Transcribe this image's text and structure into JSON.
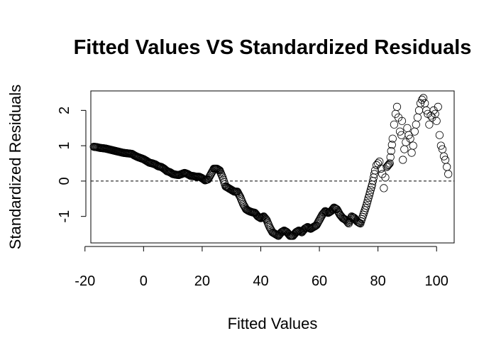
{
  "chart_data": {
    "type": "scatter",
    "title": "Fitted Values VS Standardized Residuals",
    "xlabel": "Fitted Values",
    "ylabel": "Standardized Residuals",
    "xlim": [
      -18,
      106
    ],
    "ylim": [
      -1.75,
      2.55
    ],
    "x_ticks": [
      -20,
      0,
      20,
      40,
      60,
      80,
      100
    ],
    "x_tick_labels": [
      "-20",
      "0",
      "20",
      "40",
      "60",
      "80",
      "100"
    ],
    "y_ticks": [
      -1,
      0,
      1,
      2
    ],
    "y_tick_labels": [
      "-1",
      "0",
      "1",
      "2"
    ],
    "reference_line": {
      "y": 0,
      "style": "dashed"
    },
    "grid": false,
    "marker": "open-circle",
    "points": [
      [
        -17,
        0.97
      ],
      [
        -16,
        0.96
      ],
      [
        -15,
        0.94
      ],
      [
        -14,
        0.93
      ],
      [
        -13,
        0.92
      ],
      [
        -12,
        0.9
      ],
      [
        -11,
        0.88
      ],
      [
        -10,
        0.86
      ],
      [
        -9,
        0.84
      ],
      [
        -8,
        0.82
      ],
      [
        -7,
        0.8
      ],
      [
        -6,
        0.79
      ],
      [
        -5,
        0.78
      ],
      [
        -4,
        0.77
      ],
      [
        -3,
        0.72
      ],
      [
        -2,
        0.68
      ],
      [
        -1,
        0.65
      ],
      [
        0,
        0.62
      ],
      [
        1,
        0.57
      ],
      [
        2,
        0.52
      ],
      [
        3,
        0.5
      ],
      [
        4,
        0.47
      ],
      [
        5,
        0.42
      ],
      [
        6,
        0.4
      ],
      [
        7,
        0.35
      ],
      [
        8,
        0.28
      ],
      [
        9,
        0.25
      ],
      [
        10,
        0.2
      ],
      [
        11,
        0.18
      ],
      [
        12,
        0.17
      ],
      [
        13,
        0.2
      ],
      [
        14,
        0.23
      ],
      [
        15,
        0.2
      ],
      [
        16,
        0.15
      ],
      [
        17,
        0.14
      ],
      [
        18,
        0.12
      ],
      [
        19,
        0.12
      ],
      [
        20,
        0.08
      ],
      [
        21,
        0.02
      ],
      [
        22,
        0.05
      ],
      [
        23,
        0.2
      ],
      [
        24,
        0.35
      ],
      [
        25,
        0.35
      ],
      [
        26,
        0.3
      ],
      [
        27,
        0.1
      ],
      [
        28,
        -0.15
      ],
      [
        29,
        -0.2
      ],
      [
        30,
        -0.25
      ],
      [
        31,
        -0.3
      ],
      [
        32,
        -0.3
      ],
      [
        33,
        -0.45
      ],
      [
        34,
        -0.65
      ],
      [
        35,
        -0.8
      ],
      [
        36,
        -0.85
      ],
      [
        37,
        -0.88
      ],
      [
        38,
        -0.9
      ],
      [
        39,
        -1.0
      ],
      [
        40,
        -1.05
      ],
      [
        41,
        -1.0
      ],
      [
        42,
        -1.1
      ],
      [
        43,
        -1.3
      ],
      [
        44,
        -1.45
      ],
      [
        45,
        -1.5
      ],
      [
        46,
        -1.55
      ],
      [
        47,
        -1.45
      ],
      [
        48,
        -1.4
      ],
      [
        49,
        -1.45
      ],
      [
        50,
        -1.55
      ],
      [
        51,
        -1.55
      ],
      [
        52,
        -1.45
      ],
      [
        53,
        -1.4
      ],
      [
        54,
        -1.45
      ],
      [
        55,
        -1.35
      ],
      [
        56,
        -1.3
      ],
      [
        57,
        -1.35
      ],
      [
        58,
        -1.3
      ],
      [
        59,
        -1.25
      ],
      [
        60,
        -1.1
      ],
      [
        61,
        -0.95
      ],
      [
        62,
        -0.85
      ],
      [
        63,
        -0.9
      ],
      [
        64,
        -0.85
      ],
      [
        65,
        -0.75
      ],
      [
        66,
        -0.8
      ],
      [
        67,
        -0.95
      ],
      [
        68,
        -1.05
      ],
      [
        69,
        -1.1
      ],
      [
        70,
        -1.2
      ],
      [
        71,
        -1.0
      ],
      [
        72,
        -1.05
      ],
      [
        73,
        -1.15
      ],
      [
        74,
        -1.2
      ],
      [
        75,
        -0.95
      ],
      [
        76,
        -0.7
      ],
      [
        77,
        -0.4
      ],
      [
        78,
        -0.1
      ],
      [
        79,
        0.3
      ],
      [
        80,
        0.5
      ],
      [
        81,
        0.35
      ],
      [
        82,
        -0.2
      ],
      [
        83,
        0.4
      ],
      [
        84,
        0.5
      ],
      [
        85,
        1.2
      ],
      [
        86,
        1.9
      ],
      [
        87,
        1.8
      ],
      [
        88,
        1.3
      ],
      [
        89,
        0.9
      ],
      [
        90,
        1.5
      ],
      [
        91,
        1.2
      ],
      [
        92,
        1.0
      ],
      [
        93,
        1.6
      ],
      [
        94,
        2.0
      ],
      [
        95,
        2.3
      ],
      [
        96,
        2.2
      ],
      [
        97,
        1.9
      ],
      [
        98,
        1.85
      ],
      [
        99,
        2.0
      ],
      [
        100,
        1.7
      ],
      [
        101,
        1.3
      ],
      [
        102,
        0.9
      ],
      [
        103,
        0.6
      ],
      [
        104,
        0.2
      ],
      [
        79.5,
        0.45
      ],
      [
        80.5,
        0.55
      ],
      [
        81.5,
        0.2
      ],
      [
        82.5,
        0.1
      ],
      [
        85.5,
        1.6
      ],
      [
        86.5,
        2.1
      ],
      [
        87.5,
        1.4
      ],
      [
        88.5,
        0.6
      ],
      [
        88.2,
        1.7
      ],
      [
        89.5,
        1.1
      ],
      [
        90.5,
        1.3
      ],
      [
        91.5,
        0.8
      ],
      [
        92.5,
        1.4
      ],
      [
        93.5,
        1.8
      ],
      [
        94.5,
        2.2
      ],
      [
        95.5,
        2.35
      ],
      [
        96.5,
        2.0
      ],
      [
        97.5,
        1.6
      ],
      [
        98.5,
        1.8
      ],
      [
        99.5,
        1.9
      ],
      [
        100.5,
        2.1
      ],
      [
        101.5,
        1.0
      ],
      [
        102.5,
        0.7
      ],
      [
        103.5,
        0.4
      ]
    ]
  }
}
